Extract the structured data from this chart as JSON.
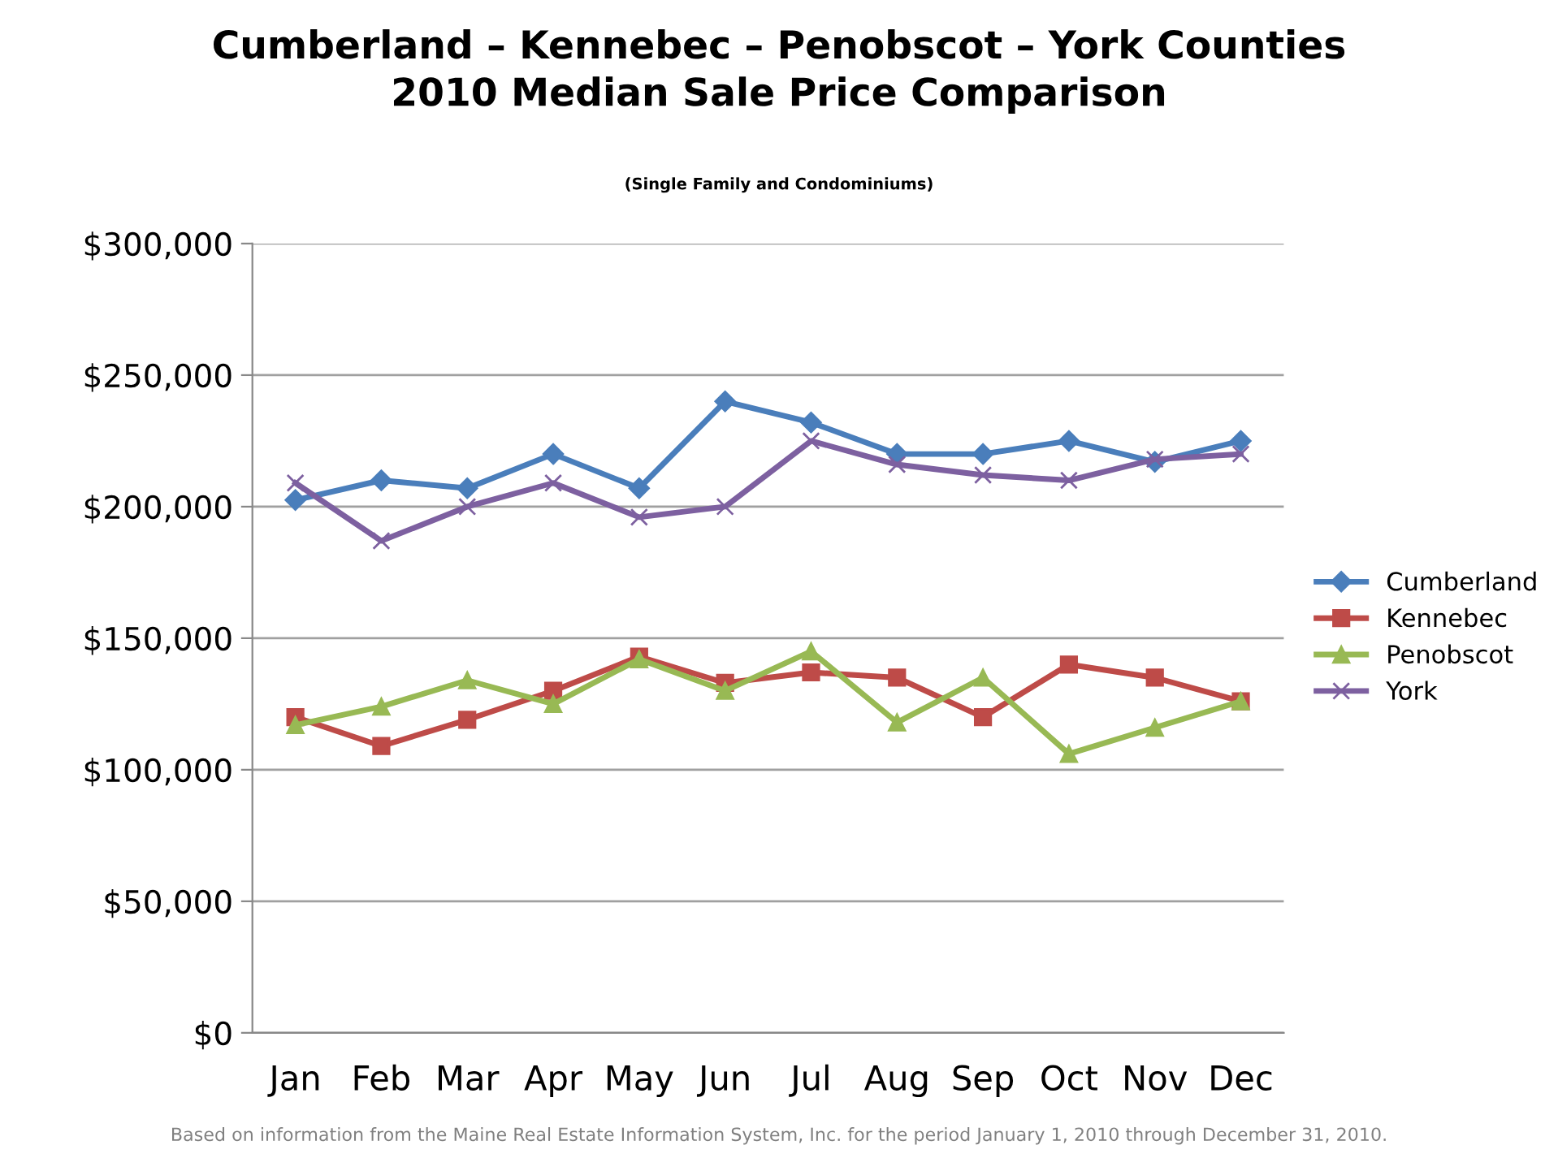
{
  "chart_data": {
    "type": "line",
    "title": "Cumberland – Kennebec – Penobscot – York Counties\n2010 Median Sale Price Comparison",
    "subtitle": "(Single Family and Condominiums)",
    "categories": [
      "Jan",
      "Feb",
      "Mar",
      "Apr",
      "May",
      "Jun",
      "Jul",
      "Aug",
      "Sep",
      "Oct",
      "Nov",
      "Dec"
    ],
    "series": [
      {
        "name": "Cumberland",
        "color": "#4a7ebb",
        "marker": "diamond",
        "values": [
          202500,
          210000,
          207000,
          220000,
          207000,
          240000,
          232000,
          220000,
          220000,
          225000,
          217000,
          225000
        ]
      },
      {
        "name": "Kennebec",
        "color": "#be4b48",
        "marker": "square",
        "values": [
          120000,
          109000,
          119000,
          130000,
          143000,
          133000,
          137000,
          135000,
          120000,
          140000,
          135000,
          126000
        ]
      },
      {
        "name": "Penobscot",
        "color": "#98b954",
        "marker": "triangle",
        "values": [
          117000,
          124000,
          134000,
          125000,
          142000,
          130000,
          145000,
          118000,
          135000,
          106000,
          116000,
          126000
        ]
      },
      {
        "name": "York",
        "color": "#7d60a0",
        "marker": "cross",
        "values": [
          209000,
          187000,
          200000,
          209000,
          196000,
          200000,
          225000,
          216000,
          212000,
          210000,
          218000,
          220000
        ]
      }
    ],
    "ylim": [
      0,
      300000
    ],
    "yticks": [
      {
        "value": 0,
        "label": "$0"
      },
      {
        "value": 50000,
        "label": "$50,000"
      },
      {
        "value": 100000,
        "label": "$100,000"
      },
      {
        "value": 150000,
        "label": "$150,000"
      },
      {
        "value": 200000,
        "label": "$200,000"
      },
      {
        "value": 250000,
        "label": "$250,000"
      },
      {
        "value": 300000,
        "label": "$300,000"
      }
    ],
    "grid": "y",
    "legend": "right",
    "line_style": "solid",
    "annotations": [
      "Based on information from the Maine Real Estate Information System, Inc. for the period January 1, 2010 through December 31, 2010."
    ]
  }
}
